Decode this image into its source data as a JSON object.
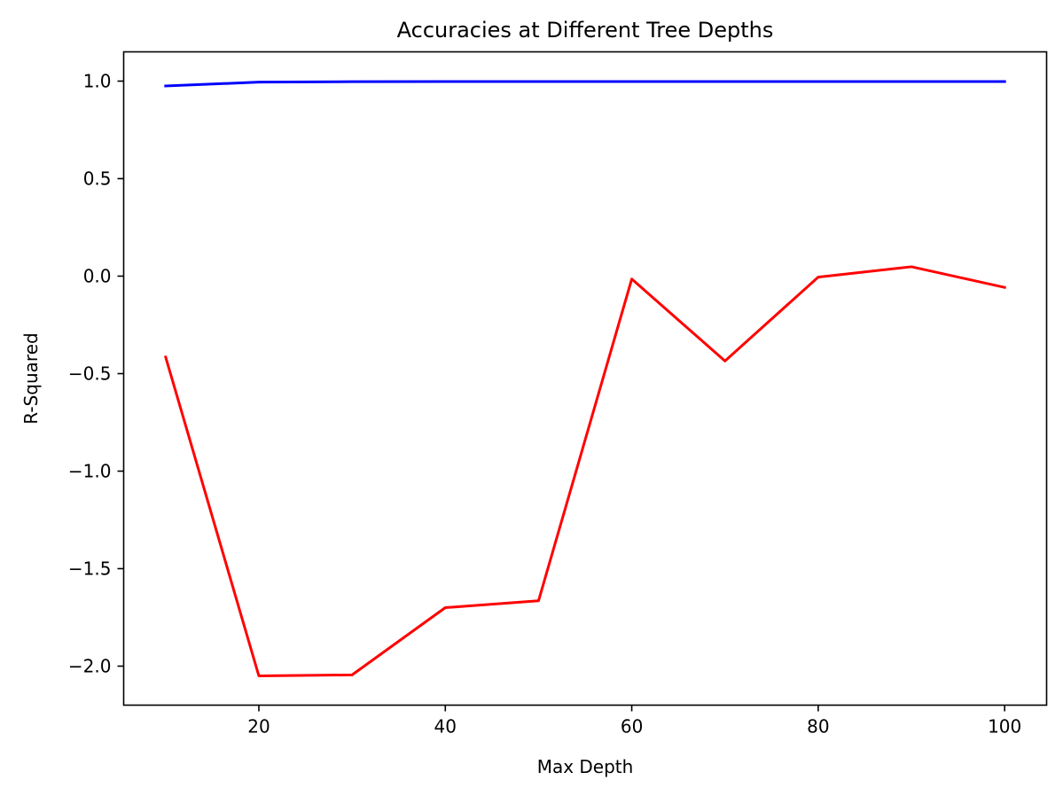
{
  "chart_data": {
    "type": "line",
    "title": "Accuracies at Different Tree Depths",
    "xlabel": "Max Depth",
    "ylabel": "R-Squared",
    "xlim": [
      5.5,
      104.5
    ],
    "ylim": [
      -2.2,
      1.15
    ],
    "xticks": [
      20,
      40,
      60,
      80,
      100
    ],
    "yticks": [
      1.0,
      0.5,
      0.0,
      -0.5,
      -1.0,
      -1.5,
      -2.0
    ],
    "ytick_labels": [
      "1.0",
      "0.5",
      "0.0",
      "−0.5",
      "−1.0",
      "−1.5",
      "−2.0"
    ],
    "grid": false,
    "x": [
      10,
      20,
      30,
      40,
      50,
      60,
      70,
      80,
      90,
      100
    ],
    "series": [
      {
        "color": "#0000ff",
        "values": [
          0.975,
          0.995,
          0.997,
          0.998,
          0.998,
          0.998,
          0.998,
          0.998,
          0.998,
          0.998
        ]
      },
      {
        "color": "#ff0000",
        "values": [
          -0.415,
          -2.05,
          -2.045,
          -1.7,
          -1.665,
          -0.015,
          -0.435,
          -0.005,
          0.048,
          -0.058
        ]
      }
    ]
  }
}
